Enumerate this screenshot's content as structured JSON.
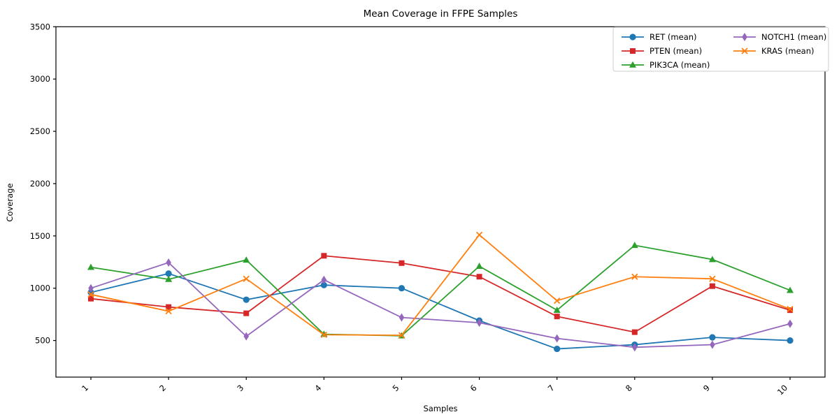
{
  "title": "Mean Coverage in FFPE Samples",
  "chart_data": {
    "type": "line",
    "title": "Mean Coverage in FFPE Samples",
    "xlabel": "Samples",
    "ylabel": "Coverage",
    "categories": [
      "1",
      "2",
      "3",
      "4",
      "5",
      "6",
      "7",
      "8",
      "9",
      "10"
    ],
    "x": [
      1,
      2,
      3,
      4,
      5,
      6,
      7,
      8,
      9,
      10
    ],
    "xlim": [
      0.55,
      10.45
    ],
    "ylim": [
      150,
      3500
    ],
    "yticks": [
      500,
      1000,
      1500,
      2000,
      2500,
      3000,
      3500
    ],
    "grid": false,
    "legend_position": "upper-right",
    "legend_columns": 2,
    "axis_color": "#000000",
    "series": [
      {
        "name": "RET (mean)",
        "color": "#1f77b4",
        "marker": "circle",
        "values": [
          960,
          1140,
          890,
          1030,
          1000,
          690,
          420,
          460,
          530,
          500
        ]
      },
      {
        "name": "PTEN (mean)",
        "color": "#d62728",
        "marker": "square",
        "values": [
          900,
          820,
          760,
          1310,
          1240,
          1110,
          730,
          580,
          1020,
          790
        ]
      },
      {
        "name": "PIK3CA (mean)",
        "color": "#2ca02c",
        "marker": "triangle",
        "values": [
          1200,
          1085,
          1270,
          560,
          545,
          1210,
          790,
          1410,
          1275,
          980
        ]
      },
      {
        "name": "NOTCH1 (mean)",
        "color": "#9467bd",
        "marker": "diamond",
        "values": [
          1000,
          1245,
          540,
          1080,
          720,
          670,
          520,
          435,
          460,
          660
        ]
      },
      {
        "name": "KRAS (mean)",
        "color": "#ff7f0e",
        "marker": "x",
        "values": [
          940,
          780,
          1090,
          555,
          550,
          1510,
          880,
          1110,
          1090,
          800
        ]
      }
    ]
  }
}
